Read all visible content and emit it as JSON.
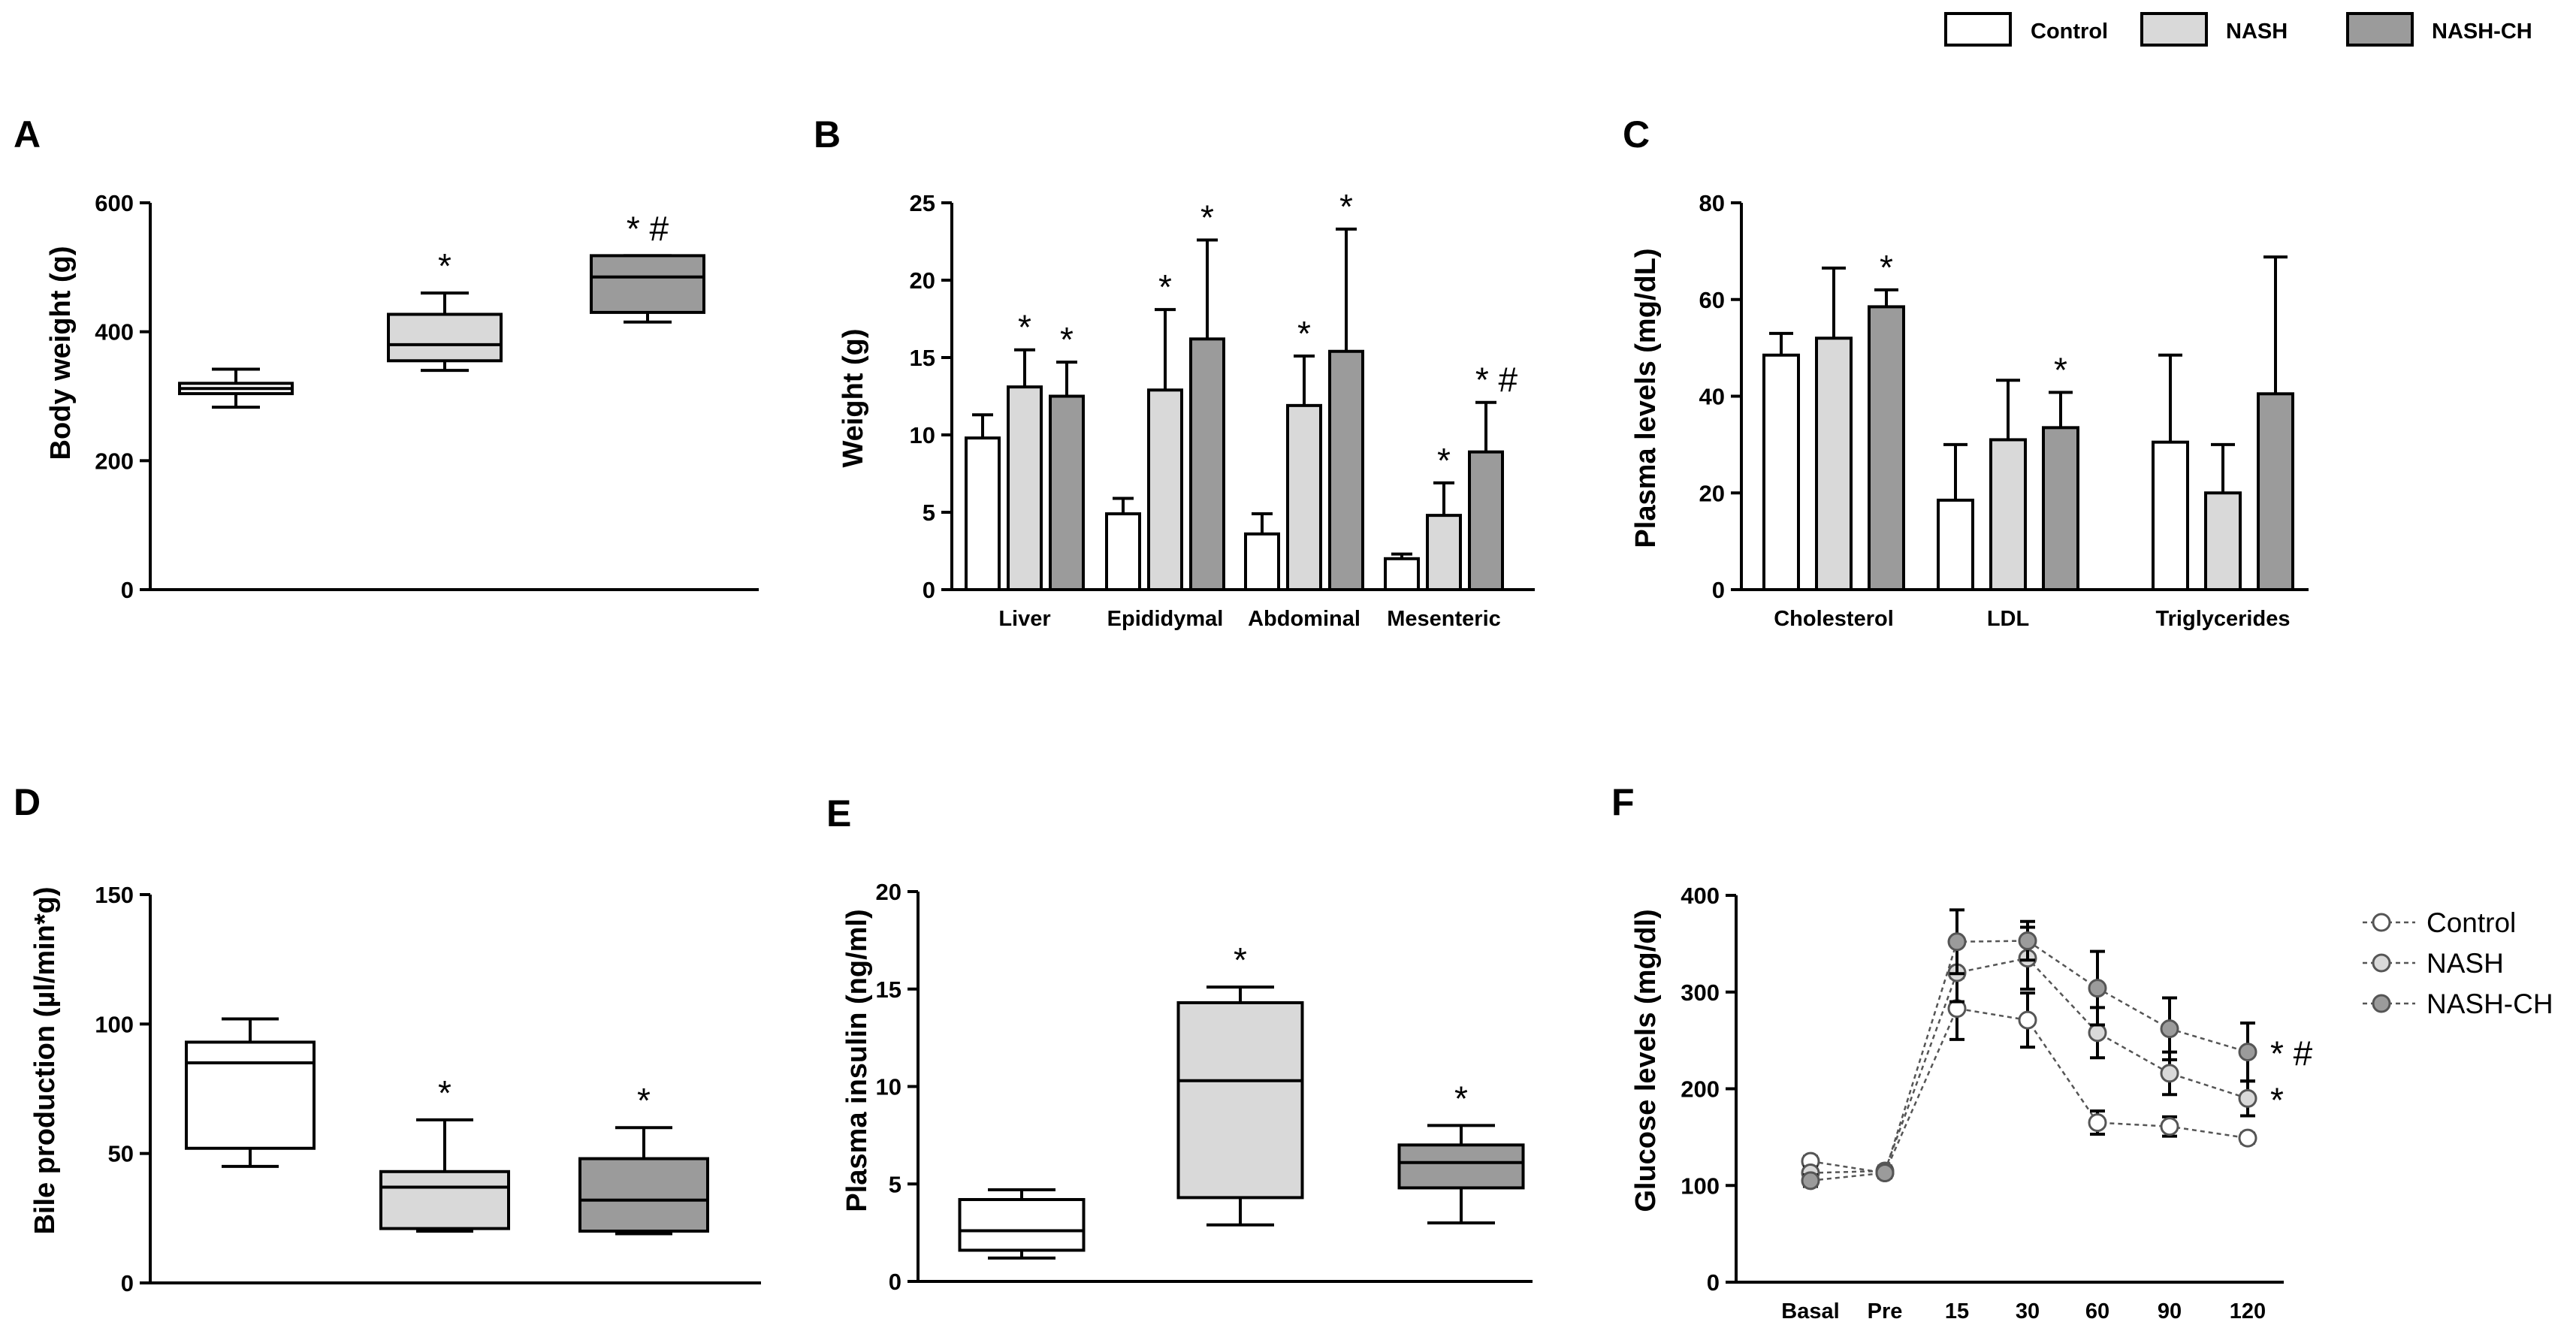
{
  "colors": {
    "Control": "#ffffff",
    "NASH": "#d9d9d9",
    "NASH-CH": "#9b9b9b"
  },
  "legend": {
    "items": [
      {
        "label": "Control",
        "key": "Control"
      },
      {
        "label": "NASH",
        "key": "NASH"
      },
      {
        "label": "NASH-CH",
        "key": "NASH-CH"
      }
    ]
  },
  "chart_data": [
    {
      "panel": "A",
      "type": "box",
      "ylabel": "Body weight (g)",
      "ylim": [
        0,
        600
      ],
      "yticks": [
        0,
        200,
        400,
        600
      ],
      "groups": [
        {
          "name": "Control",
          "min": 283,
          "q1": 304,
          "median": 312,
          "q3": 320,
          "max": 342,
          "annotation": ""
        },
        {
          "name": "NASH",
          "min": 340,
          "q1": 355,
          "median": 380,
          "q3": 427,
          "max": 460,
          "annotation": "*"
        },
        {
          "name": "NASH-CH",
          "min": 415,
          "q1": 430,
          "median": 485,
          "q3": 518,
          "max": 518,
          "annotation": "* #"
        }
      ]
    },
    {
      "panel": "B",
      "type": "bar",
      "ylabel": "Weight (g)",
      "ylim": [
        0,
        25
      ],
      "yticks": [
        0,
        5,
        10,
        15,
        20,
        25
      ],
      "categories": [
        "Liver",
        "Epididymal",
        "Abdominal",
        "Mesenteric"
      ],
      "series": [
        {
          "name": "Control",
          "values": [
            9.8,
            4.9,
            3.6,
            2.0
          ],
          "errors": [
            1.5,
            1.0,
            1.3,
            0.3
          ],
          "annotations": [
            "",
            "",
            "",
            ""
          ]
        },
        {
          "name": "NASH",
          "values": [
            13.1,
            12.9,
            11.9,
            4.8
          ],
          "errors": [
            2.4,
            5.2,
            3.2,
            2.1
          ],
          "annotations": [
            "*",
            "*",
            "*",
            "*"
          ]
        },
        {
          "name": "NASH-CH",
          "values": [
            12.5,
            16.2,
            15.4,
            8.9
          ],
          "errors": [
            2.2,
            6.4,
            7.9,
            3.2
          ],
          "annotations": [
            "*",
            "*",
            "*",
            "* #"
          ]
        }
      ]
    },
    {
      "panel": "C",
      "type": "bar",
      "ylabel": "Plasma levels (mg/dL)",
      "ylim": [
        0,
        80
      ],
      "yticks": [
        0,
        20,
        40,
        60,
        80
      ],
      "categories": [
        "Cholesterol",
        "LDL",
        "Triglycerides"
      ],
      "series": [
        {
          "name": "Control",
          "values": [
            48.5,
            18.5,
            30.5
          ],
          "errors": [
            4.5,
            11.5,
            18.0
          ],
          "annotations": [
            "",
            "",
            ""
          ]
        },
        {
          "name": "NASH",
          "values": [
            52.0,
            31.0,
            20.0
          ],
          "errors": [
            14.5,
            12.3,
            10.0
          ],
          "annotations": [
            "",
            "",
            ""
          ]
        },
        {
          "name": "NASH-CH",
          "values": [
            58.5,
            33.5,
            40.5
          ],
          "errors": [
            3.5,
            7.3,
            28.3
          ],
          "annotations": [
            "*",
            "*",
            ""
          ]
        }
      ]
    },
    {
      "panel": "D",
      "type": "box",
      "ylabel": "Bile production (µl/min*g)",
      "ylim": [
        0,
        150
      ],
      "yticks": [
        0,
        50,
        100,
        150
      ],
      "groups": [
        {
          "name": "Control",
          "min": 45,
          "q1": 52,
          "median": 85,
          "q3": 93,
          "max": 102,
          "annotation": ""
        },
        {
          "name": "NASH",
          "min": 20,
          "q1": 21,
          "median": 37,
          "q3": 43,
          "max": 63,
          "annotation": "*"
        },
        {
          "name": "NASH-CH",
          "min": 19,
          "q1": 20,
          "median": 32,
          "q3": 48,
          "max": 60,
          "annotation": "*"
        }
      ]
    },
    {
      "panel": "E",
      "type": "box",
      "ylabel": "Plasma insulin (ng/ml)",
      "ylim": [
        0,
        20
      ],
      "yticks": [
        0,
        5,
        10,
        15,
        20
      ],
      "groups": [
        {
          "name": "Control",
          "min": 1.2,
          "q1": 1.6,
          "median": 2.6,
          "q3": 4.2,
          "max": 4.7,
          "annotation": ""
        },
        {
          "name": "NASH",
          "min": 2.9,
          "q1": 4.3,
          "median": 10.3,
          "q3": 14.3,
          "max": 15.1,
          "annotation": "*"
        },
        {
          "name": "NASH-CH",
          "min": 3.0,
          "q1": 4.8,
          "median": 6.1,
          "q3": 7.0,
          "max": 8.0,
          "annotation": "*"
        }
      ]
    },
    {
      "panel": "F",
      "type": "line",
      "ylabel": "Glucose levels (mg/dl)",
      "ylim": [
        0,
        400
      ],
      "yticks": [
        0,
        100,
        200,
        300,
        400
      ],
      "x": [
        "Basal",
        "Pre",
        "15",
        "30",
        "60",
        "90",
        "120"
      ],
      "series": [
        {
          "name": "Control",
          "values": [
            125,
            113,
            283,
            271,
            165,
            161,
            149
          ],
          "errors": [
            5,
            4,
            32,
            28,
            12,
            10,
            5
          ],
          "annotation": ""
        },
        {
          "name": "NASH",
          "values": [
            113,
            115,
            320,
            335,
            258,
            216,
            190
          ],
          "errors": [
            6,
            5,
            30,
            32,
            26,
            22,
            18
          ],
          "annotation": "*"
        },
        {
          "name": "NASH-CH",
          "values": [
            105,
            113,
            352,
            353,
            304,
            262,
            238
          ],
          "errors": [
            6,
            5,
            33,
            20,
            38,
            32,
            30
          ],
          "annotation": "* #"
        }
      ]
    }
  ]
}
